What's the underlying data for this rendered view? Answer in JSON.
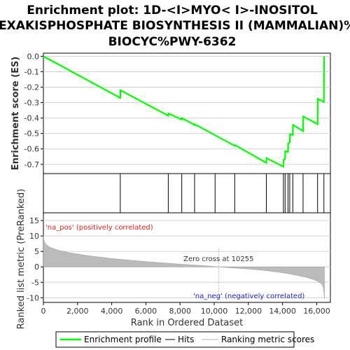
{
  "chart_data": {
    "type": "line",
    "title_lines": [
      "Enrichment plot: 1D-<I>MYO< I>-INOSITOL",
      "HEXAKISPHOSPHATE BIOSYNTHESIS II (MAMMALIAN)%",
      "BIOCYC%PWY-6362"
    ],
    "es_panel": {
      "ylabel": "Enrichment score (ES)",
      "ylim": [
        -0.76,
        0.02
      ],
      "yticks": [
        0.0,
        -0.1,
        -0.2,
        -0.3,
        -0.4,
        -0.5,
        -0.6,
        -0.7
      ],
      "ytick_labels": [
        "0.0",
        "-0.1",
        "-0.2",
        "-0.3",
        "-0.4",
        "-0.5",
        "-0.6",
        "-0.7"
      ],
      "grid": true,
      "series": [
        {
          "name": "Enrichment profile",
          "color": "#00ff00",
          "x": [
            0,
            4500,
            4510,
            7310,
            7320,
            8100,
            8110,
            8850,
            8860,
            11200,
            11210,
            13050,
            13060,
            14050,
            14060,
            14150,
            14160,
            14320,
            14330,
            14420,
            14430,
            14600,
            14610,
            15200,
            15210,
            16050,
            16060,
            16420,
            16430
          ],
          "y": [
            0.0,
            -0.27,
            -0.22,
            -0.385,
            -0.37,
            -0.41,
            -0.4,
            -0.445,
            -0.44,
            -0.58,
            -0.575,
            -0.69,
            -0.66,
            -0.715,
            -0.67,
            -0.665,
            -0.615,
            -0.62,
            -0.565,
            -0.56,
            -0.505,
            -0.51,
            -0.445,
            -0.485,
            -0.39,
            -0.44,
            -0.275,
            -0.295,
            0.0
          ]
        }
      ]
    },
    "hits_panel": {
      "hit_positions": [
        4500,
        7310,
        8100,
        8850,
        10050,
        11200,
        13050,
        14050,
        14150,
        14320,
        14420,
        14600,
        15200,
        16050,
        16420
      ]
    },
    "color_bar": {
      "colors": [
        "#e8323c",
        "#f25560",
        "#f77a85",
        "#fba8b8",
        "#fcc8dc",
        "#d9cdea",
        "#b2b2ea",
        "#6c6cdc",
        "#2020c0"
      ],
      "breaks": [
        0,
        1000,
        3800,
        5300,
        7100,
        10300,
        12400,
        13500,
        14800,
        16450
      ]
    },
    "metric_panel": {
      "ylabel": "Ranked list metric (PreRanked)",
      "ylim": [
        -11.5,
        17.5
      ],
      "yticks": [
        15,
        10,
        5,
        0,
        -5,
        -10
      ],
      "ytick_labels": [
        "15",
        "10",
        "5",
        "0",
        "-5",
        "-10"
      ],
      "fill_color": "#bbbbbb",
      "x": [
        0,
        10,
        50,
        150,
        400,
        800,
        1500,
        2500,
        4000,
        6000,
        8000,
        9500,
        10255,
        11000,
        12000,
        13000,
        14000,
        14800,
        15400,
        15800,
        16100,
        16300,
        16380,
        16420,
        16450
      ],
      "y": [
        10.2,
        9.5,
        8.2,
        7.2,
        6.3,
        5.5,
        4.6,
        3.7,
        2.7,
        1.7,
        0.9,
        0.35,
        0.0,
        -0.3,
        -0.7,
        -1.2,
        -1.9,
        -2.7,
        -3.4,
        -4.1,
        -4.8,
        -5.6,
        -6.6,
        -8.2,
        -10.3
      ],
      "zero_cross_label": "Zero cross at 10255",
      "zero_cross": 10255,
      "pos_label": "'na_pos' (positively correlated)",
      "neg_label": "'na_neg' (negatively correlated)"
    },
    "x_axis": {
      "xlabel": "Rank in Ordered Dataset",
      "xlim": [
        0,
        16800
      ],
      "xticks": [
        0,
        2000,
        4000,
        6000,
        8000,
        10000,
        12000,
        14000,
        16000
      ],
      "xtick_labels": [
        "0",
        "2,000",
        "4,000",
        "6,000",
        "8,000",
        "10,000",
        "12,000",
        "14,000",
        "16,000"
      ]
    },
    "legend": {
      "placement": "bottom",
      "entries": [
        "Enrichment profile",
        "Hits",
        "Ranking metric scores"
      ]
    },
    "colors": {
      "profile": "#00ff00",
      "hit": "#000000",
      "grid": "#d0d0d0",
      "pos_text": "#e02020",
      "neg_text": "#2020c0",
      "metric_fill": "#bbbbbb"
    }
  }
}
